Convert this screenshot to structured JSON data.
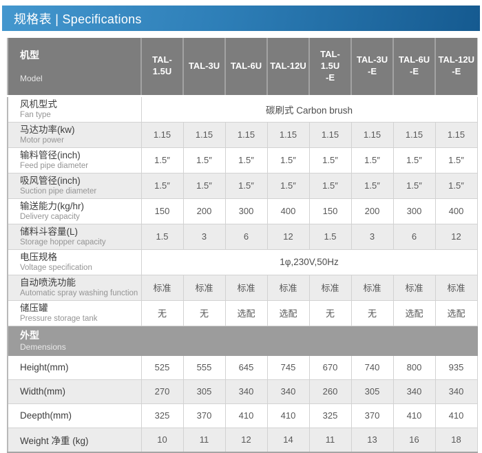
{
  "title": {
    "text": "规格表 | Specifications"
  },
  "header": {
    "label_zh": "机型",
    "label_en": "Model",
    "models": [
      "TAL-1.5U",
      "TAL-3U",
      "TAL-6U",
      "TAL-12U",
      "TAL-1.5U\n-E",
      "TAL-3U\n-E",
      "TAL-6U\n-E",
      "TAL-12U\n-E"
    ]
  },
  "rows": [
    {
      "zh": "风机型式",
      "en": "Fan type",
      "span": true,
      "values": [
        "碳刷式 Carbon brush"
      ]
    },
    {
      "zh": "马达功率(kw)",
      "en": "Motor power",
      "values": [
        "1.15",
        "1.15",
        "1.15",
        "1.15",
        "1.15",
        "1.15",
        "1.15",
        "1.15"
      ]
    },
    {
      "zh": "输料管径(inch)",
      "en": "Feed pipe diameter",
      "values": [
        "1.5″",
        "1.5″",
        "1.5″",
        "1.5″",
        "1.5″",
        "1.5″",
        "1.5″",
        "1.5″"
      ]
    },
    {
      "zh": "吸风管径(inch)",
      "en": "Suction pipe diameter",
      "values": [
        "1.5″",
        "1.5″",
        "1.5″",
        "1.5″",
        "1.5″",
        "1.5″",
        "1.5″",
        "1.5″"
      ]
    },
    {
      "zh": "输送能力(kg/hr)",
      "en": "Delivery capacity",
      "values": [
        "150",
        "200",
        "300",
        "400",
        "150",
        "200",
        "300",
        "400"
      ]
    },
    {
      "zh": "储料斗容量(L)",
      "en": "Storage hopper capacity",
      "values": [
        "1.5",
        "3",
        "6",
        "12",
        "1.5",
        "3",
        "6",
        "12"
      ]
    },
    {
      "zh": "电压规格",
      "en": "Voltage specification",
      "span": true,
      "values": [
        "1φ,230V,50Hz"
      ]
    },
    {
      "zh": "自动喷洗功能",
      "en": "Automatic spray washing function",
      "values": [
        "标准",
        "标准",
        "标准",
        "标准",
        "标准",
        "标准",
        "标准",
        "标准"
      ]
    },
    {
      "zh": "储压罐",
      "en": "Pressure storage tank",
      "values": [
        "无",
        "无",
        "选配",
        "选配",
        "无",
        "无",
        "选配",
        "选配"
      ]
    }
  ],
  "section": {
    "zh": "外型",
    "en": "Demensions"
  },
  "dim_rows": [
    {
      "label": "Height(mm)",
      "values": [
        "525",
        "555",
        "645",
        "745",
        "670",
        "740",
        "800",
        "935"
      ]
    },
    {
      "label": "Width(mm)",
      "values": [
        "270",
        "305",
        "340",
        "340",
        "260",
        "305",
        "340",
        "340"
      ]
    },
    {
      "label": "Deepth(mm)",
      "values": [
        "325",
        "370",
        "410",
        "410",
        "325",
        "370",
        "410",
        "410"
      ]
    },
    {
      "label": "Weight 净重 (kg)",
      "values": [
        "10",
        "11",
        "12",
        "14",
        "11",
        "13",
        "16",
        "18"
      ]
    }
  ],
  "colors": {
    "accent_blue_start": "#4497ce",
    "accent_blue_end": "#155a90",
    "header_gray": "#7d7d7d",
    "section_gray": "#9c9c9c",
    "stripe_gray": "#ececec"
  }
}
